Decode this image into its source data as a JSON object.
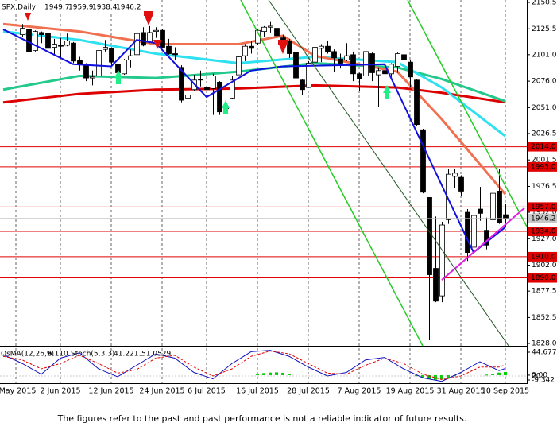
{
  "chart_data": {
    "type": "candlestick",
    "title": "SPX,Daily",
    "ylim": [
      1828,
      2150.5
    ],
    "yticks": [
      2150.5,
      2125.5,
      {
        "value": 2101,
        "label": "2101.0"
      },
      {
        "value": 2076,
        "label": "2076.0"
      },
      {
        "value": 2051,
        "label": "2051.0"
      },
      2026.5,
      2001.5,
      1976.5,
      {
        "value": 1952,
        "label": "1952.0"
      },
      {
        "value": 1927,
        "label": "1927.0"
      },
      {
        "value": 1902,
        "label": "1902.0"
      },
      1877.5,
      1852.5,
      {
        "value": 1828,
        "label": "1828.0"
      }
    ],
    "xticks": [
      {
        "value": -1,
        "label": "May 2015"
      },
      {
        "value": 6,
        "label": "2 Jun 2015"
      },
      {
        "value": 14,
        "label": "12 Jun 2015"
      },
      {
        "value": 22,
        "label": "24 Jun 2015"
      },
      {
        "value": 29,
        "label": "6 Jul 2015"
      },
      {
        "value": 37,
        "label": "16 Jul 2015"
      },
      {
        "value": 45,
        "label": "28 Jul 2015"
      },
      {
        "value": 53,
        "label": "7 Aug 2015"
      },
      {
        "value": 61,
        "label": "19 Aug 2015"
      },
      {
        "value": 69,
        "label": "31 Aug 2015"
      },
      {
        "value": 76,
        "label": "10 Sep 2015"
      }
    ],
    "levels": [
      {
        "value": 2014,
        "label": "2014.0"
      },
      {
        "value": 1995,
        "label": "1995.0"
      },
      {
        "value": 1957,
        "label": "1957.0"
      },
      {
        "value": 1934,
        "label": "1934.0"
      },
      {
        "value": 1910,
        "label": "1910.0"
      },
      {
        "value": 1890,
        "label": "1890.0"
      }
    ],
    "level_color": "#e00000",
    "candles": [
      [
        2120,
        2130,
        2118,
        2126
      ],
      [
        2125,
        2127,
        2099,
        2104
      ],
      [
        2105,
        2124,
        2104,
        2123
      ],
      [
        2122,
        2123,
        2112,
        2120
      ],
      [
        2121,
        2122,
        2101,
        2107
      ],
      [
        2108,
        2116,
        2100,
        2111
      ],
      [
        2110,
        2117,
        2098,
        2109
      ],
      [
        2110,
        2121,
        2109,
        2114
      ],
      [
        2112,
        2113,
        2093,
        2095
      ],
      [
        2096,
        2099,
        2086,
        2092
      ],
      [
        2092,
        2093,
        2076,
        2079
      ],
      [
        2079,
        2086,
        2072,
        2080
      ],
      [
        2081,
        2108,
        2081,
        2105
      ],
      [
        2106,
        2115,
        2104,
        2108
      ],
      [
        2107,
        2108,
        2091,
        2094
      ],
      [
        2092,
        2093,
        2072,
        2084
      ],
      [
        2083,
        2097,
        2082,
        2096
      ],
      [
        2096,
        2106,
        2089,
        2100
      ],
      [
        2101,
        2126,
        2100,
        2121
      ],
      [
        2122,
        2127,
        2109,
        2110
      ],
      [
        2113,
        2128,
        2112,
        2122
      ],
      [
        2123,
        2127,
        2117,
        2124
      ],
      [
        2124,
        2125,
        2107,
        2108
      ],
      [
        2109,
        2116,
        2101,
        2102
      ],
      [
        2102,
        2108,
        2096,
        2101
      ],
      [
        2089,
        2091,
        2056,
        2058
      ],
      [
        2060,
        2071,
        2056,
        2063
      ],
      [
        2068,
        2082,
        2067,
        2077
      ],
      [
        2078,
        2086,
        2071,
        2077
      ],
      [
        2070,
        2078,
        2058,
        2068
      ],
      [
        2069,
        2083,
        2044,
        2081
      ],
      [
        2075,
        2076,
        2044,
        2047
      ],
      [
        2050,
        2075,
        2049,
        2052
      ],
      [
        2060,
        2081,
        2059,
        2077
      ],
      [
        2082,
        2100,
        2082,
        2099
      ],
      [
        2100,
        2111,
        2095,
        2109
      ],
      [
        2109,
        2114,
        2102,
        2107
      ],
      [
        2112,
        2125,
        2110,
        2124
      ],
      [
        2123,
        2128,
        2118,
        2127
      ],
      [
        2127,
        2132,
        2122,
        2128
      ],
      [
        2126,
        2128,
        2115,
        2119
      ],
      [
        2117,
        2120,
        2108,
        2114
      ],
      [
        2114,
        2116,
        2098,
        2102
      ],
      [
        2103,
        2106,
        2077,
        2079
      ],
      [
        2077,
        2078,
        2063,
        2068
      ],
      [
        2070,
        2095,
        2070,
        2093
      ],
      [
        2094,
        2110,
        2090,
        2108
      ],
      [
        2107,
        2111,
        2094,
        2109
      ],
      [
        2109,
        2114,
        2102,
        2104
      ],
      [
        2104,
        2106,
        2085,
        2098
      ],
      [
        2097,
        2102,
        2088,
        2093
      ],
      [
        2096,
        2112,
        2095,
        2100
      ],
      [
        2101,
        2104,
        2076,
        2083
      ],
      [
        2083,
        2084,
        2067,
        2078
      ],
      [
        2081,
        2105,
        2081,
        2104
      ],
      [
        2102,
        2103,
        2076,
        2084
      ],
      [
        2082,
        2089,
        2052,
        2086
      ],
      [
        2086,
        2094,
        2080,
        2083
      ],
      [
        2083,
        2093,
        2080,
        2092
      ],
      [
        2090,
        2103,
        2084,
        2102
      ],
      [
        2101,
        2104,
        2094,
        2096
      ],
      [
        2094,
        2096,
        2070,
        2080
      ],
      [
        2077,
        2078,
        2034,
        2035
      ],
      [
        2030,
        2031,
        1970,
        1971
      ],
      [
        1966,
        1966,
        1831,
        1893
      ],
      [
        1899,
        1948,
        1867,
        1868
      ],
      [
        1873,
        1943,
        1867,
        1940
      ],
      [
        1945,
        1993,
        1941,
        1988
      ],
      [
        1986,
        1993,
        1975,
        1989
      ],
      [
        1985,
        1987,
        1967,
        1972
      ],
      [
        1952,
        1955,
        1906,
        1914
      ],
      [
        1919,
        1950,
        1910,
        1949
      ],
      [
        1955,
        1976,
        1944,
        1951
      ],
      [
        1935,
        1947,
        1917,
        1921
      ],
      [
        1945,
        1974,
        1944,
        1970
      ],
      [
        1972,
        1993,
        1941,
        1942
      ],
      [
        1949.7,
        1959.9,
        1938.4,
        1946.2
      ]
    ],
    "series": [
      {
        "color": "#dd0000",
        "width": 3,
        "x": [
          -3,
          9,
          21,
          34,
          46,
          59,
          66,
          76
        ],
        "values": [
          2056,
          2064,
          2068,
          2069,
          2072,
          2070,
          2065,
          2056
        ]
      },
      {
        "color": "#22c98a",
        "width": 3,
        "x": [
          -3,
          9,
          21,
          34,
          46,
          59,
          66,
          76
        ],
        "values": [
          2068,
          2081,
          2079,
          2085,
          2093,
          2089,
          2078,
          2057
        ]
      },
      {
        "color": "#2ee0f0",
        "width": 3,
        "x": [
          -3,
          9,
          21,
          34,
          46,
          59,
          66,
          76
        ],
        "values": [
          2123,
          2115,
          2102,
          2093,
          2099,
          2094,
          2070,
          2024
        ]
      },
      {
        "color": "#f07050",
        "width": 3,
        "x": [
          -3,
          9,
          21,
          34,
          41,
          46,
          59,
          66,
          76
        ],
        "values": [
          2130,
          2123,
          2111,
          2111,
          2119,
          2100,
          2085,
          2040,
          1969
        ]
      },
      {
        "color": "#1010e0",
        "width": 2,
        "x": [
          -3,
          8,
          14,
          18,
          21,
          29,
          36,
          41,
          57,
          71,
          76
        ],
        "values": [
          2125,
          2092,
          2090,
          2115,
          2112,
          2061,
          2086,
          2090,
          2092,
          1914,
          1938
        ]
      },
      {
        "color": "#e020e0",
        "width": 2,
        "x": [
          66,
          79
        ],
        "values": [
          1888,
          1956
        ]
      }
    ],
    "osma": {
      "name": "OsMA(12,26,9)",
      "color": "#00d000",
      "ylim": [
        -9.342,
        44.677
      ],
      "yticks": [
        44.677,
        {
          "value": 0,
          "label": "0.00"
        },
        -9.342
      ],
      "x": [
        37,
        38,
        39,
        40,
        41,
        42,
        62,
        63,
        64,
        65,
        66,
        67,
        68,
        73,
        74,
        75,
        76
      ],
      "values": [
        2,
        4,
        5,
        5.5,
        4.5,
        2,
        -2,
        -5,
        -8,
        -9,
        -8,
        -5,
        -2,
        1,
        3,
        5,
        6.11
      ],
      "value_labels": [
        null,
        null,
        null,
        null,
        null,
        null,
        null,
        null,
        null,
        null,
        null,
        null,
        null,
        null,
        null,
        null,
        "6.110"
      ]
    },
    "stoch": {
      "name": "Stoch(5,3,3)",
      "ylim": [
        0,
        100
      ],
      "yticks": [
        20
      ],
      "series": [
        {
          "color": "#1010c0",
          "x": [
            -3,
            0,
            3,
            6,
            9,
            12,
            15,
            18,
            21,
            24,
            27,
            30,
            33,
            36,
            39,
            42,
            45,
            48,
            51,
            54,
            57,
            60,
            63,
            66,
            69,
            72,
            75,
            76
          ],
          "values": [
            80,
            55,
            25,
            70,
            85,
            40,
            18,
            50,
            82,
            70,
            30,
            12,
            55,
            88,
            92,
            75,
            45,
            20,
            30,
            65,
            72,
            40,
            15,
            5,
            30,
            60,
            35,
            41.2211
          ]
        },
        {
          "color": "#e00000",
          "x": [
            -3,
            0,
            3,
            6,
            9,
            12,
            15,
            18,
            21,
            24,
            27,
            30,
            33,
            36,
            39,
            42,
            45,
            48,
            51,
            54,
            57,
            60,
            63,
            66,
            69,
            72,
            75,
            76
          ],
          "values": [
            75,
            65,
            40,
            55,
            78,
            55,
            28,
            38,
            70,
            78,
            45,
            20,
            40,
            75,
            90,
            82,
            55,
            28,
            25,
            50,
            70,
            55,
            25,
            10,
            20,
            45,
            45,
            51.0529
          ]
        }
      ]
    },
    "footnote": "The figures refer to the past and past performance is not a reliable indicator of future results."
  }
}
